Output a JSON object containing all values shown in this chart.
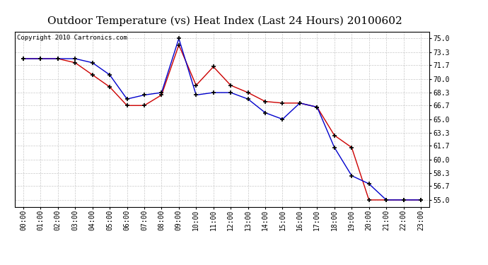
{
  "title": "Outdoor Temperature (vs) Heat Index (Last 24 Hours) 20100602",
  "copyright": "Copyright 2010 Cartronics.com",
  "x_labels": [
    "00:00",
    "01:00",
    "02:00",
    "03:00",
    "04:00",
    "05:00",
    "06:00",
    "07:00",
    "08:00",
    "09:00",
    "10:00",
    "11:00",
    "12:00",
    "13:00",
    "14:00",
    "15:00",
    "16:00",
    "17:00",
    "18:00",
    "19:00",
    "20:00",
    "21:00",
    "22:00",
    "23:00"
  ],
  "temp_red": [
    72.5,
    72.5,
    72.5,
    72.0,
    70.5,
    69.0,
    66.7,
    66.7,
    68.0,
    74.2,
    69.2,
    71.5,
    69.2,
    68.3,
    67.2,
    67.0,
    67.0,
    66.5,
    63.0,
    61.5,
    55.0,
    55.0,
    55.0,
    55.0
  ],
  "heat_blue": [
    72.5,
    72.5,
    72.5,
    72.5,
    72.0,
    70.5,
    67.5,
    68.0,
    68.3,
    75.0,
    68.0,
    68.3,
    68.3,
    67.5,
    65.8,
    65.0,
    67.0,
    66.5,
    61.5,
    58.0,
    57.0,
    55.0,
    55.0,
    55.0
  ],
  "y_ticks": [
    55.0,
    56.7,
    58.3,
    60.0,
    61.7,
    63.3,
    65.0,
    66.7,
    68.3,
    70.0,
    71.7,
    73.3,
    75.0
  ],
  "y_min": 54.16,
  "y_max": 75.83,
  "red_color": "#cc0000",
  "blue_color": "#0000cc",
  "grid_color": "#bbbbbb",
  "bg_color": "#ffffff",
  "title_fontsize": 11,
  "copyright_fontsize": 6.5,
  "tick_fontsize": 7,
  "ytick_fontsize": 7
}
